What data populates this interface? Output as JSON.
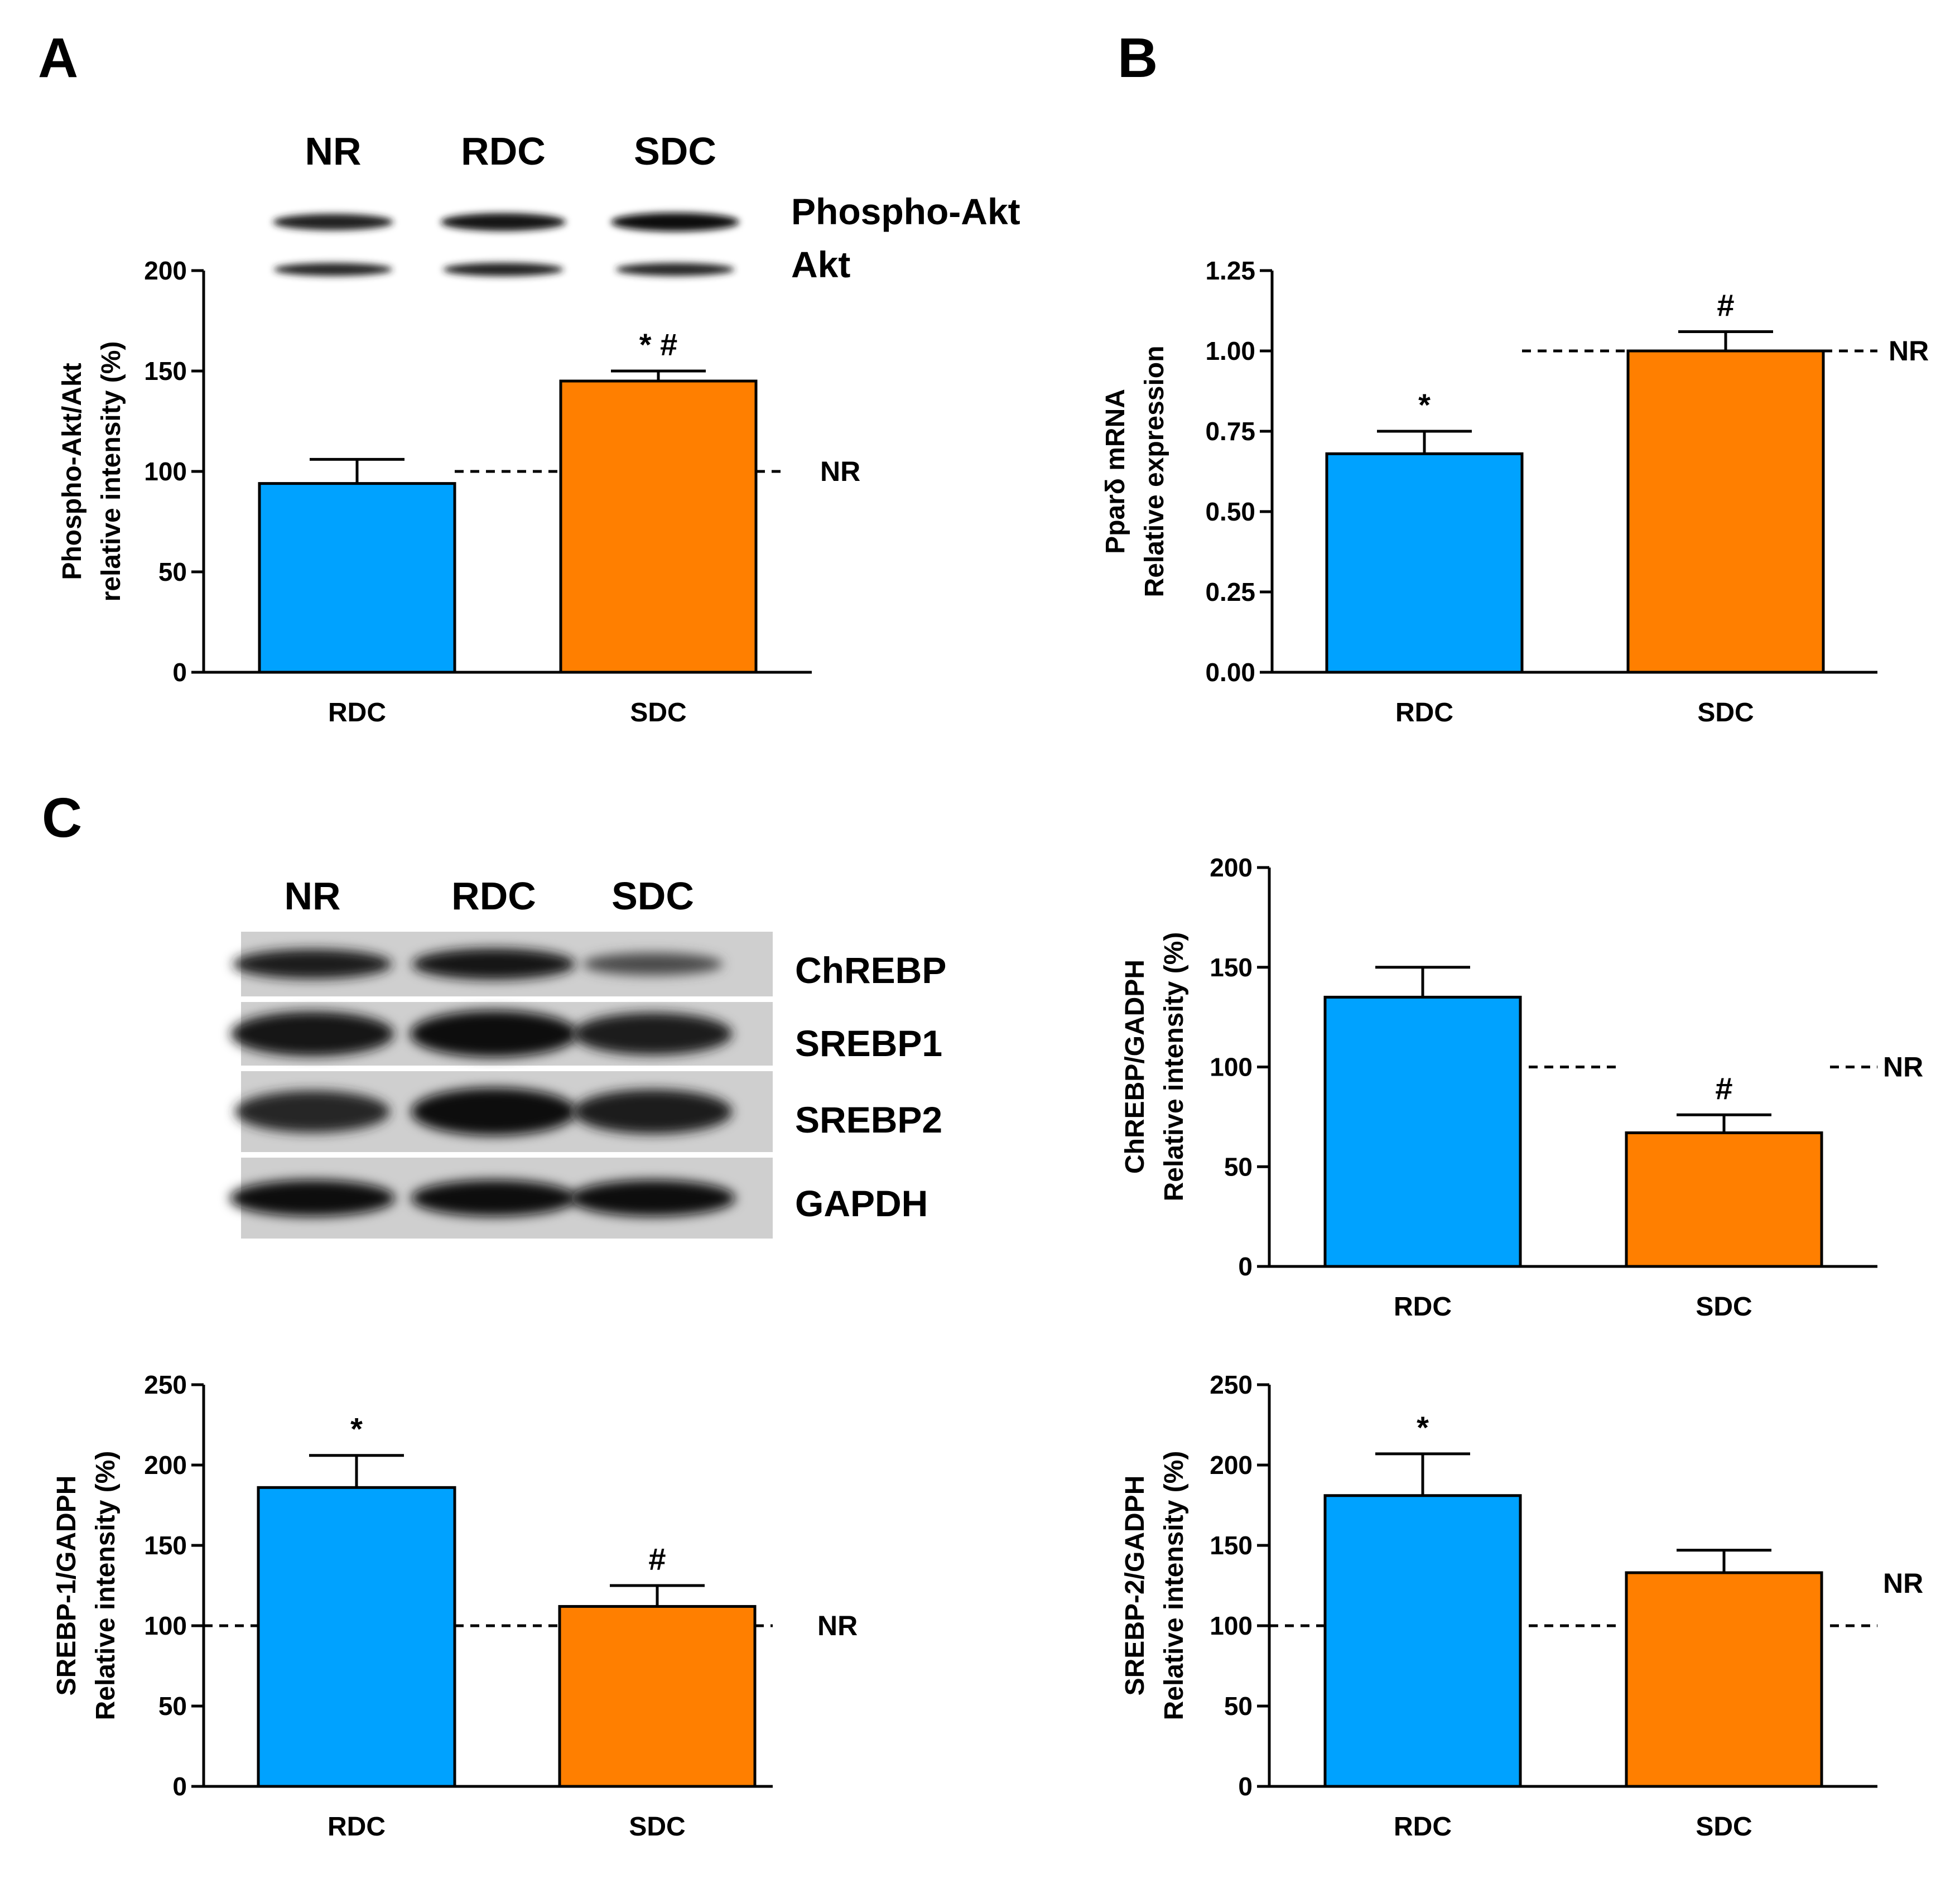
{
  "panels": [
    {
      "letter": "A"
    },
    {
      "letter": "B"
    },
    {
      "letter": "C"
    }
  ],
  "colors": {
    "RDC": "#00a2ff",
    "SDC": "#ff7f00",
    "axis": "#000000"
  },
  "blot_a": {
    "lanes": [
      "NR",
      "RDC",
      "SDC"
    ],
    "bands": [
      {
        "label": "Phospho-Akt",
        "intensity": [
          0.75,
          0.9,
          1.0
        ]
      },
      {
        "label": "Akt",
        "intensity": [
          0.7,
          0.75,
          0.7
        ]
      }
    ]
  },
  "blot_c": {
    "lanes": [
      "NR",
      "RDC",
      "SDC"
    ],
    "bands": [
      {
        "label": "ChREBP",
        "intensity": [
          0.8,
          0.9,
          0.35
        ]
      },
      {
        "label": "SREBP1",
        "intensity": [
          0.9,
          1.0,
          0.8
        ]
      },
      {
        "label": "SREBP2",
        "intensity": [
          0.7,
          0.95,
          0.8
        ]
      },
      {
        "label": "GAPDH",
        "intensity": [
          0.95,
          0.95,
          0.95
        ]
      }
    ]
  },
  "chart_data": [
    {
      "type": "bar",
      "panel": "A",
      "categories": [
        "RDC",
        "SDC"
      ],
      "values": [
        94,
        145
      ],
      "errors": [
        12,
        5
      ],
      "annotations": [
        "",
        "* #"
      ],
      "reference": {
        "value": 100,
        "label": "NR"
      },
      "ylim": [
        0,
        200
      ],
      "yticks": [
        "0",
        "50",
        "100",
        "150",
        "200"
      ],
      "ylabel": [
        "Phospho-Akt/Akt",
        "relative intensity (%)"
      ]
    },
    {
      "type": "bar",
      "panel": "B",
      "categories": [
        "RDC",
        "SDC"
      ],
      "values": [
        0.68,
        1.0
      ],
      "errors": [
        0.07,
        0.06
      ],
      "annotations": [
        "*",
        "#"
      ],
      "reference": {
        "value": 1.0,
        "label": "NR"
      },
      "ylim": [
        0,
        1.25
      ],
      "yticks": [
        "0.00",
        "0.25",
        "0.50",
        "0.75",
        "1.00",
        "1.25"
      ],
      "ylabel": [
        "Pparδ mRNA",
        "Relative expression"
      ]
    },
    {
      "type": "bar",
      "panel": "C",
      "categories": [
        "RDC",
        "SDC"
      ],
      "values": [
        135,
        67
      ],
      "errors": [
        15,
        9
      ],
      "annotations": [
        "",
        "#"
      ],
      "reference": {
        "value": 100,
        "label": "NR"
      },
      "ylim": [
        0,
        200
      ],
      "yticks": [
        "0",
        "50",
        "100",
        "150",
        "200"
      ],
      "ylabel": [
        "ChREBP/GADPH",
        "Relative intensity (%)"
      ]
    },
    {
      "type": "bar",
      "panel": "C",
      "categories": [
        "RDC",
        "SDC"
      ],
      "values": [
        186,
        112
      ],
      "errors": [
        20,
        13
      ],
      "annotations": [
        "*",
        "#"
      ],
      "reference": {
        "value": 100,
        "label": "NR"
      },
      "ylim": [
        0,
        250
      ],
      "yticks": [
        "0",
        "50",
        "100",
        "150",
        "200",
        "250"
      ],
      "ylabel": [
        "SREBP-1/GADPH",
        "Relative intensity (%)"
      ]
    },
    {
      "type": "bar",
      "panel": "C",
      "categories": [
        "RDC",
        "SDC"
      ],
      "values": [
        181,
        133
      ],
      "errors": [
        26,
        14
      ],
      "annotations": [
        "*",
        ""
      ],
      "reference": {
        "value": 100,
        "label": "NR"
      },
      "ylim": [
        0,
        250
      ],
      "yticks": [
        "0",
        "50",
        "100",
        "150",
        "200",
        "250"
      ],
      "ylabel": [
        "SREBP-2/GADPH",
        "Relative intensity (%)"
      ]
    }
  ]
}
